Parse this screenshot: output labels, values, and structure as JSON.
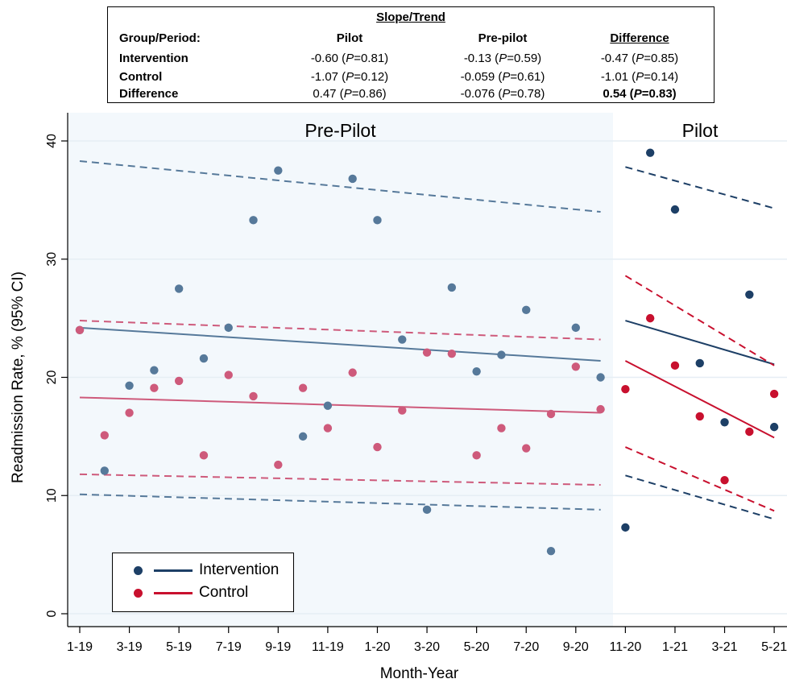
{
  "table": {
    "title": "Slope/Trend",
    "header": [
      "Group/Period:",
      "Pilot",
      "Pre-pilot",
      "Difference"
    ],
    "rows": [
      {
        "label": "Intervention",
        "pilot": "-0.60",
        "pilot_p": "0.81",
        "prepilot": "-0.13",
        "prepilot_p": "0.59",
        "diff": "-0.47",
        "diff_p": "0.85"
      },
      {
        "label": "Control",
        "pilot": "-1.07",
        "pilot_p": "0.12",
        "prepilot": "-0.059",
        "prepilot_p": "0.61",
        "diff": "-1.01",
        "diff_p": "0.14"
      },
      {
        "label": "Difference",
        "pilot": "0.47",
        "pilot_p": "0.86",
        "prepilot": "-0.076",
        "prepilot_p": "0.78",
        "diff": "0.54",
        "diff_p": "0.83"
      }
    ]
  },
  "chart_data": {
    "type": "scatter",
    "title": "",
    "xlabel": "Month-Year",
    "ylabel": "Readmission Rate, % (95% CI)",
    "ylim": [
      0,
      40
    ],
    "yticks": [
      0,
      10,
      20,
      30,
      40
    ],
    "xticks": [
      "1-19",
      "3-19",
      "5-19",
      "7-19",
      "9-19",
      "11-19",
      "1-20",
      "3-20",
      "5-20",
      "7-20",
      "9-20",
      "11-20",
      "1-21",
      "3-21",
      "5-21"
    ],
    "months": [
      "1-19",
      "2-19",
      "3-19",
      "4-19",
      "5-19",
      "6-19",
      "7-19",
      "8-19",
      "9-19",
      "10-19",
      "11-19",
      "12-19",
      "1-20",
      "2-20",
      "3-20",
      "4-20",
      "5-20",
      "6-20",
      "7-20",
      "8-20",
      "9-20",
      "10-20",
      "11-20",
      "12-20",
      "1-21",
      "2-21",
      "3-21",
      "4-21",
      "5-21"
    ],
    "periods": [
      {
        "label": "Pre-Pilot",
        "start": "1-19",
        "end": "10-20",
        "shaded": true
      },
      {
        "label": "Pilot",
        "start": "11-20",
        "end": "5-21",
        "shaded": false
      }
    ],
    "colors": {
      "intervention_pre": "#56799a",
      "intervention_pilot": "#1d3f66",
      "control_pre": "#ce5a7b",
      "control_pilot": "#c8102e",
      "shade": "#f3f8fc"
    },
    "series": [
      {
        "name": "Intervention",
        "points": [
          [
            "1-19",
            24.0
          ],
          [
            "2-19",
            12.1
          ],
          [
            "3-19",
            19.3
          ],
          [
            "4-19",
            20.6
          ],
          [
            "5-19",
            27.5
          ],
          [
            "6-19",
            21.6
          ],
          [
            "7-19",
            24.2
          ],
          [
            "8-19",
            33.3
          ],
          [
            "9-19",
            37.5
          ],
          [
            "10-19",
            15.0
          ],
          [
            "11-19",
            17.6
          ],
          [
            "12-19",
            36.8
          ],
          [
            "1-20",
            33.3
          ],
          [
            "2-20",
            23.2
          ],
          [
            "3-20",
            8.8
          ],
          [
            "4-20",
            27.6
          ],
          [
            "5-20",
            20.5
          ],
          [
            "6-20",
            21.9
          ],
          [
            "7-20",
            25.7
          ],
          [
            "8-20",
            5.3
          ],
          [
            "9-20",
            24.2
          ],
          [
            "10-20",
            20.0
          ],
          [
            "11-20",
            7.3
          ],
          [
            "12-20",
            39.0
          ],
          [
            "1-21",
            34.2
          ],
          [
            "2-21",
            21.2
          ],
          [
            "3-21",
            16.2
          ],
          [
            "4-21",
            27.0
          ],
          [
            "5-21",
            15.8
          ]
        ],
        "trend_pre": {
          "fit": [
            [
              "1-19",
              24.2
            ],
            [
              "10-20",
              21.4
            ]
          ],
          "ci_upper": [
            [
              "1-19",
              38.3
            ],
            [
              "10-20",
              34.0
            ]
          ],
          "ci_lower": [
            [
              "1-19",
              10.1
            ],
            [
              "10-20",
              8.8
            ]
          ]
        },
        "trend_pilot": {
          "fit": [
            [
              "11-20",
              24.8
            ],
            [
              "5-21",
              21.1
            ]
          ],
          "ci_upper": [
            [
              "11-20",
              37.8
            ],
            [
              "5-21",
              34.3
            ]
          ],
          "ci_lower": [
            [
              "11-20",
              11.7
            ],
            [
              "5-21",
              8.0
            ]
          ]
        }
      },
      {
        "name": "Control",
        "points": [
          [
            "1-19",
            24.0
          ],
          [
            "2-19",
            15.1
          ],
          [
            "3-19",
            17.0
          ],
          [
            "4-19",
            19.1
          ],
          [
            "5-19",
            19.7
          ],
          [
            "6-19",
            13.4
          ],
          [
            "7-19",
            20.2
          ],
          [
            "8-19",
            18.4
          ],
          [
            "9-19",
            12.6
          ],
          [
            "10-19",
            19.1
          ],
          [
            "11-19",
            15.7
          ],
          [
            "12-19",
            20.4
          ],
          [
            "1-20",
            14.1
          ],
          [
            "2-20",
            17.2
          ],
          [
            "3-20",
            22.1
          ],
          [
            "4-20",
            22.0
          ],
          [
            "5-20",
            13.4
          ],
          [
            "6-20",
            15.7
          ],
          [
            "7-20",
            14.0
          ],
          [
            "8-20",
            16.9
          ],
          [
            "9-20",
            20.9
          ],
          [
            "10-20",
            17.3
          ],
          [
            "11-20",
            19.0
          ],
          [
            "12-20",
            25.0
          ],
          [
            "1-21",
            21.0
          ],
          [
            "2-21",
            16.7
          ],
          [
            "3-21",
            11.3
          ],
          [
            "4-21",
            15.4
          ],
          [
            "5-21",
            18.6
          ]
        ],
        "trend_pre": {
          "fit": [
            [
              "1-19",
              18.3
            ],
            [
              "10-20",
              17.0
            ]
          ],
          "ci_upper": [
            [
              "1-19",
              24.8
            ],
            [
              "10-20",
              23.2
            ]
          ],
          "ci_lower": [
            [
              "1-19",
              11.8
            ],
            [
              "10-20",
              10.9
            ]
          ]
        },
        "trend_pilot": {
          "fit": [
            [
              "11-20",
              21.4
            ],
            [
              "5-21",
              14.9
            ]
          ],
          "ci_upper": [
            [
              "11-20",
              28.6
            ],
            [
              "5-21",
              21.0
            ]
          ],
          "ci_lower": [
            [
              "11-20",
              14.1
            ],
            [
              "5-21",
              8.7
            ]
          ]
        }
      }
    ],
    "legend": {
      "position": "bottom-left",
      "entries": [
        "Intervention",
        "Control"
      ]
    }
  }
}
